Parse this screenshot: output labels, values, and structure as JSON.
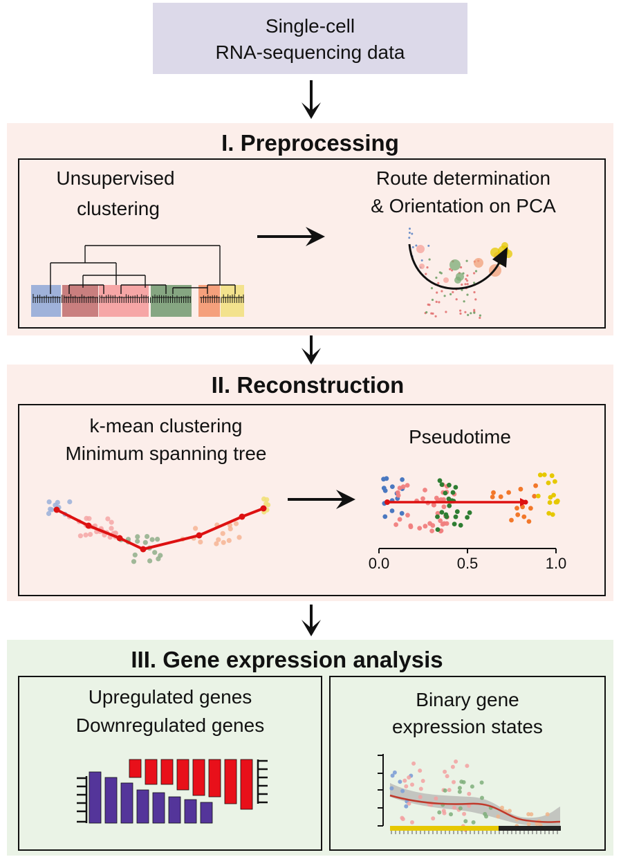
{
  "input": {
    "line1": "Single-cell",
    "line2": "RNA-sequencing data"
  },
  "preprocessing": {
    "title": "I. Preprocessing",
    "left_line1": "Unsupervised",
    "left_line2": "clustering",
    "right_line1": "Route determination",
    "right_line2": "& Orientation on PCA"
  },
  "reconstruction": {
    "title": "II. Reconstruction",
    "left_line1": "k-mean clustering",
    "left_line2": "Minimum spanning tree",
    "right_title": "Pseudotime",
    "axis_ticks": [
      "0.0",
      "0.5",
      "1.0"
    ]
  },
  "gene_expression": {
    "title": "III. Gene expression analysis",
    "left_line1": "Upregulated genes",
    "left_line2": "Downregulated genes",
    "right_line1": "Binary gene",
    "right_line2": "expression states"
  },
  "colors": {
    "blue": "#4a78c0",
    "salmon": "#f07e7e",
    "green": "#2e7d32",
    "orange": "#f2782a",
    "yellow": "#e6c800",
    "red": "#dd1111",
    "purple": "#54359a",
    "bar_red": "#e8101a"
  },
  "icons": [
    "down-arrow-icon",
    "right-arrow-icon"
  ]
}
